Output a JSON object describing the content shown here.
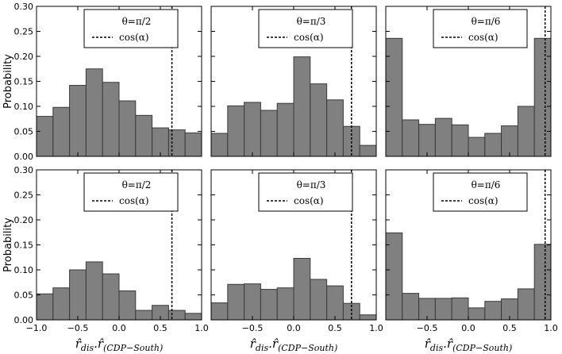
{
  "figure": {
    "ylabel": "Probability",
    "xlabel_main": "r̂",
    "xlabel_sub1": "dis",
    "xlabel_mid": ".r̂",
    "xlabel_sub2": "(CDP−South)",
    "y_ticks": [
      "0.00",
      "0.05",
      "0.10",
      "0.15",
      "0.20",
      "0.25",
      "0.30"
    ],
    "x_ticks_first": [
      "−1.0",
      "−0.5",
      "0.0",
      "0.5",
      "1.0"
    ],
    "x_ticks_other": [
      "−0.5",
      "0.0",
      "0.5",
      "1.0"
    ],
    "bar_color": "#808080",
    "line_color": "#000000"
  },
  "chart_data": [
    {
      "type": "bar",
      "row": 0,
      "col": 0,
      "legend_theta": "θ=π/2",
      "legend_line": "cos(α)",
      "cos_alpha": 0.64,
      "xlim": [
        -1,
        1
      ],
      "ylim": [
        0,
        0.3
      ],
      "bin_edges": [
        -1.0,
        -0.8,
        -0.6,
        -0.4,
        -0.2,
        0.0,
        0.2,
        0.4,
        0.6,
        0.8,
        1.0
      ],
      "values": [
        0.08,
        0.098,
        0.142,
        0.175,
        0.148,
        0.111,
        0.082,
        0.057,
        0.053,
        0.047
      ]
    },
    {
      "type": "bar",
      "row": 0,
      "col": 1,
      "legend_theta": "θ=π/3",
      "legend_line": "cos(α)",
      "cos_alpha": 0.7,
      "xlim": [
        -1,
        1
      ],
      "ylim": [
        0,
        0.3
      ],
      "bin_edges": [
        -1.0,
        -0.8,
        -0.6,
        -0.4,
        -0.2,
        0.0,
        0.2,
        0.4,
        0.6,
        0.8,
        1.0
      ],
      "values": [
        0.046,
        0.101,
        0.108,
        0.092,
        0.106,
        0.199,
        0.145,
        0.113,
        0.06,
        0.022
      ]
    },
    {
      "type": "bar",
      "row": 0,
      "col": 2,
      "legend_theta": "θ=π/6",
      "legend_line": "cos(α)",
      "cos_alpha": 0.93,
      "xlim": [
        -1,
        1
      ],
      "ylim": [
        0,
        0.3
      ],
      "bin_edges": [
        -1.0,
        -0.8,
        -0.6,
        -0.4,
        -0.2,
        0.0,
        0.2,
        0.4,
        0.6,
        0.8,
        1.0
      ],
      "values": [
        0.236,
        0.073,
        0.064,
        0.076,
        0.063,
        0.038,
        0.046,
        0.061,
        0.1,
        0.236
      ]
    },
    {
      "type": "bar",
      "row": 1,
      "col": 0,
      "legend_theta": "θ=π/2",
      "legend_line": "cos(α)",
      "cos_alpha": 0.64,
      "xlim": [
        -1,
        1
      ],
      "ylim": [
        0,
        0.3
      ],
      "bin_edges": [
        -1.0,
        -0.8,
        -0.6,
        -0.4,
        -0.2,
        0.0,
        0.2,
        0.4,
        0.6,
        0.8,
        1.0
      ],
      "values": [
        0.052,
        0.064,
        0.1,
        0.116,
        0.092,
        0.058,
        0.019,
        0.029,
        0.019,
        0.013
      ]
    },
    {
      "type": "bar",
      "row": 1,
      "col": 1,
      "legend_theta": "θ=π/3",
      "legend_line": "cos(α)",
      "cos_alpha": 0.7,
      "xlim": [
        -1,
        1
      ],
      "ylim": [
        0,
        0.3
      ],
      "bin_edges": [
        -1.0,
        -0.8,
        -0.6,
        -0.4,
        -0.2,
        0.0,
        0.2,
        0.4,
        0.6,
        0.8,
        1.0
      ],
      "values": [
        0.034,
        0.071,
        0.072,
        0.061,
        0.064,
        0.123,
        0.081,
        0.068,
        0.033,
        0.01
      ]
    },
    {
      "type": "bar",
      "row": 1,
      "col": 2,
      "legend_theta": "θ=π/6",
      "legend_line": "cos(α)",
      "cos_alpha": 0.93,
      "xlim": [
        -1,
        1
      ],
      "ylim": [
        0,
        0.3
      ],
      "bin_edges": [
        -1.0,
        -0.8,
        -0.6,
        -0.4,
        -0.2,
        0.0,
        0.2,
        0.4,
        0.6,
        0.8,
        1.0
      ],
      "values": [
        0.174,
        0.053,
        0.043,
        0.043,
        0.044,
        0.024,
        0.037,
        0.042,
        0.062,
        0.151
      ]
    }
  ]
}
